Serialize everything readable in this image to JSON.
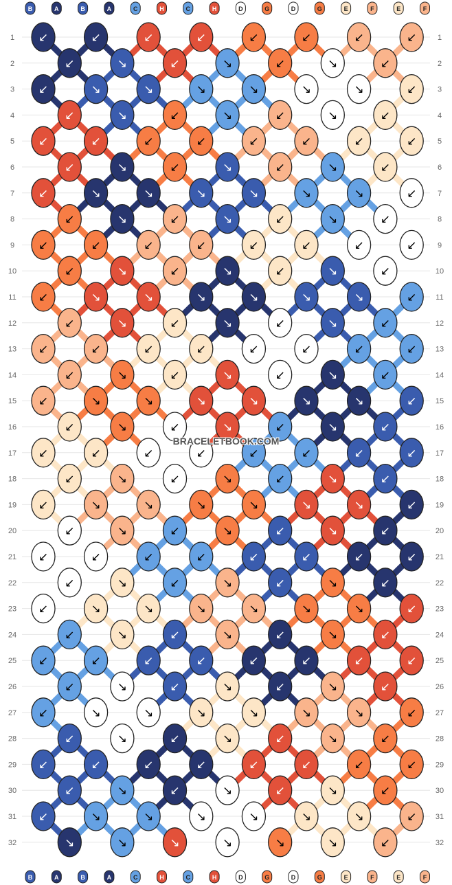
{
  "watermark": "BRACELETBOOK.COM",
  "colors": {
    "A": "#27356E",
    "B": "#3A5CAE",
    "C": "#65A1E3",
    "H": "#E2513A",
    "D": "#FFFFFF",
    "G": "#F77D45",
    "E": "#FDE6C7",
    "F": "#FAB48C"
  },
  "strings_top": [
    "B",
    "A",
    "B",
    "A",
    "C",
    "H",
    "C",
    "H",
    "D",
    "G",
    "D",
    "G",
    "E",
    "F",
    "E",
    "F"
  ],
  "strings_bottom": [
    "B",
    "A",
    "B",
    "A",
    "C",
    "H",
    "C",
    "H",
    "D",
    "G",
    "D",
    "G",
    "E",
    "F",
    "E",
    "F"
  ],
  "row_numbers": [
    "1",
    "2",
    "3",
    "4",
    "5",
    "6",
    "7",
    "8",
    "9",
    "10",
    "11",
    "12",
    "13",
    "14",
    "15",
    "16",
    "17",
    "18",
    "19",
    "20",
    "21",
    "22",
    "23",
    "24",
    "25",
    "26",
    "27",
    "28",
    "29",
    "30",
    "31",
    "32"
  ],
  "knots": [
    [
      "A↙",
      "A↙",
      "H↙",
      "H↙",
      "G↙",
      "G↙",
      "F↙",
      "F↙"
    ],
    [
      "A↙",
      "B↘",
      "H↙",
      "C↘",
      "G↙",
      "D↘",
      "F↙"
    ],
    [
      "A↙",
      "B↘",
      "B↘",
      "C↘",
      "C↘",
      "D↘",
      "D↘",
      "E↙"
    ],
    [
      "H↙",
      "B↘",
      "G↙",
      "C↘",
      "F↙",
      "D↘",
      "E↙"
    ],
    [
      "H↙",
      "H↙",
      "G↙",
      "G↙",
      "F↙",
      "F↙",
      "E↙",
      "E↙"
    ],
    [
      "H↙",
      "A↘",
      "G↙",
      "B↘",
      "F↙",
      "C↘",
      "E↙"
    ],
    [
      "H↙",
      "A↘",
      "A↘",
      "B↘",
      "B↘",
      "C↘",
      "C↘",
      "D↙"
    ],
    [
      "G↙",
      "A↘",
      "F↙",
      "B↘",
      "E↙",
      "C↘",
      "D↙"
    ],
    [
      "G↙",
      "G↙",
      "F↙",
      "F↙",
      "E↙",
      "E↙",
      "D↙",
      "D↙"
    ],
    [
      "G↙",
      "H↘",
      "F↙",
      "A↘",
      "E↙",
      "B↘",
      "D↙"
    ],
    [
      "G↙",
      "H↘",
      "H↘",
      "A↘",
      "A↘",
      "B↘",
      "B↘",
      "C↙"
    ],
    [
      "F↙",
      "H↘",
      "E↙",
      "A↘",
      "D↙",
      "B↘",
      "C↙"
    ],
    [
      "F↙",
      "F↙",
      "E↙",
      "E↙",
      "D↙",
      "D↙",
      "C↙",
      "C↙"
    ],
    [
      "F↙",
      "G↘",
      "E↙",
      "H↘",
      "D↙",
      "A↘",
      "C↙"
    ],
    [
      "F↙",
      "G↘",
      "G↘",
      "H↘",
      "H↘",
      "A↘",
      "A↘",
      "B↙"
    ],
    [
      "E↙",
      "G↘",
      "D↙",
      "H↘",
      "C↙",
      "A↘",
      "B↙"
    ],
    [
      "E↙",
      "E↙",
      "D↙",
      "D↙",
      "C↙",
      "C↙",
      "B↙",
      "B↙"
    ],
    [
      "E↙",
      "F↘",
      "D↙",
      "G↘",
      "C↙",
      "H↘",
      "B↙"
    ],
    [
      "E↙",
      "F↘",
      "F↘",
      "G↘",
      "G↘",
      "H↘",
      "H↘",
      "A↙"
    ],
    [
      "D↙",
      "F↘",
      "C↙",
      "G↘",
      "B↙",
      "H↘",
      "A↙"
    ],
    [
      "D↙",
      "D↙",
      "C↙",
      "C↙",
      "B↙",
      "B↙",
      "A↙",
      "A↙"
    ],
    [
      "D↙",
      "E↘",
      "C↙",
      "F↘",
      "B↙",
      "G↘",
      "A↙"
    ],
    [
      "D↙",
      "E↘",
      "E↘",
      "F↘",
      "F↘",
      "G↘",
      "G↘",
      "H↙"
    ],
    [
      "C↙",
      "E↘",
      "B↙",
      "F↘",
      "A↙",
      "G↘",
      "H↙"
    ],
    [
      "C↙",
      "C↙",
      "B↙",
      "B↙",
      "A↙",
      "A↙",
      "H↙",
      "H↙"
    ],
    [
      "C↙",
      "D↘",
      "B↙",
      "E↘",
      "A↙",
      "F↘",
      "H↙"
    ],
    [
      "C↙",
      "D↘",
      "D↘",
      "E↘",
      "E↘",
      "F↘",
      "F↘",
      "G↙"
    ],
    [
      "B↙",
      "D↘",
      "A↙",
      "E↘",
      "H↙",
      "F↘",
      "G↙"
    ],
    [
      "B↙",
      "B↙",
      "A↙",
      "A↙",
      "H↙",
      "H↙",
      "G↙",
      "G↙"
    ],
    [
      "B↙",
      "C↘",
      "A↙",
      "D↘",
      "H↙",
      "E↘",
      "G↙"
    ],
    [
      "B↙",
      "C↘",
      "C↘",
      "D↘",
      "D↘",
      "E↘",
      "E↘",
      "F↙"
    ],
    [
      "A↘",
      "C↘",
      "H↘",
      "D↘",
      "G↘",
      "E↘",
      "F↙"
    ]
  ]
}
